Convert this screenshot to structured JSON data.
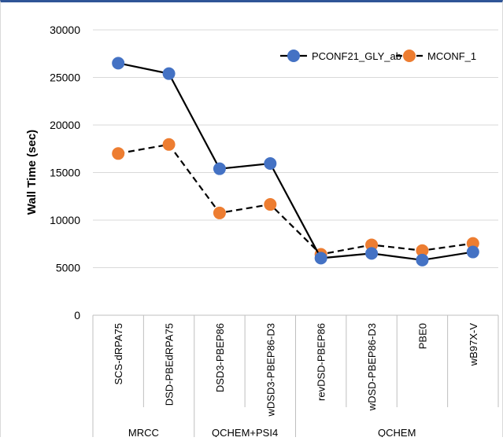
{
  "chart_data": {
    "type": "line",
    "title": "",
    "xlabel": "",
    "ylabel": "Wall Time (sec)",
    "ylim": [
      0,
      30000
    ],
    "yticks": [
      "0",
      "5000",
      "10000",
      "15000",
      "20000",
      "25000",
      "30000"
    ],
    "categories": [
      "SCS-dRPA75",
      "DSD-PBEdRPA75",
      "DSD3-PBEP86",
      "wDSD3-PBEP86-D3",
      "revDSD-PBEP86",
      "wDSD-PBEP86-D3",
      "PBE0",
      "wB97X-V"
    ],
    "groups": [
      {
        "label": "MRCC",
        "count": 2
      },
      {
        "label": "QCHEM+PSI4",
        "count": 2
      },
      {
        "label": "QCHEM",
        "count": 4
      }
    ],
    "series": [
      {
        "name": "PCONF21_GLY_ab",
        "color": "#4472c4",
        "line_style": "solid",
        "values": [
          26500,
          25400,
          15400,
          15950,
          6000,
          6500,
          5800,
          6650
        ]
      },
      {
        "name": "MCONF_1",
        "color": "#ed7d31",
        "line_style": "dashed",
        "values": [
          17000,
          17950,
          10750,
          11650,
          6400,
          7400,
          6800,
          7550
        ]
      }
    ],
    "grid": true,
    "legend_position": "top-right"
  }
}
